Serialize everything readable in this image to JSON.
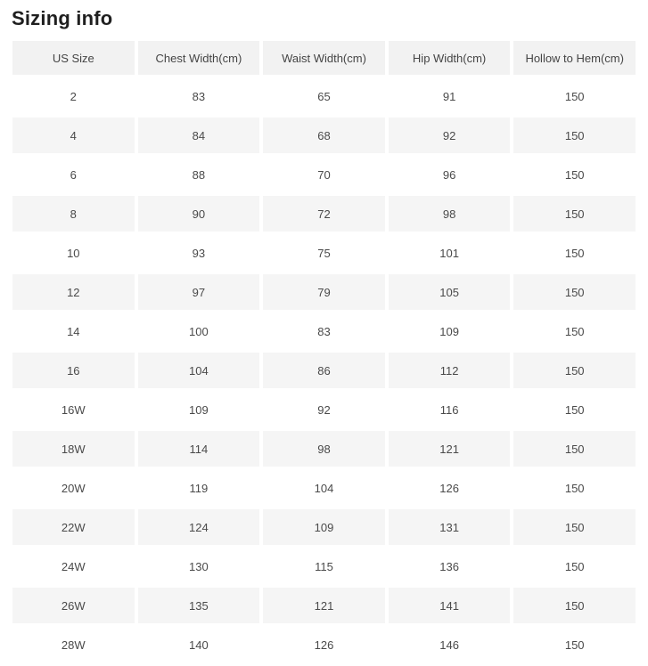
{
  "page": {
    "title": "Sizing info"
  },
  "colors": {
    "header_background": "#f2f2f2",
    "stripe_background": "#f5f5f5",
    "text": "#4a4a4a",
    "title_text": "#1f1f1f"
  },
  "table": {
    "columns": [
      "US Size",
      "Chest Width(cm)",
      "Waist Width(cm)",
      "Hip Width(cm)",
      "Hollow to Hem(cm)"
    ],
    "rows": [
      [
        "2",
        "83",
        "65",
        "91",
        "150"
      ],
      [
        "4",
        "84",
        "68",
        "92",
        "150"
      ],
      [
        "6",
        "88",
        "70",
        "96",
        "150"
      ],
      [
        "8",
        "90",
        "72",
        "98",
        "150"
      ],
      [
        "10",
        "93",
        "75",
        "101",
        "150"
      ],
      [
        "12",
        "97",
        "79",
        "105",
        "150"
      ],
      [
        "14",
        "100",
        "83",
        "109",
        "150"
      ],
      [
        "16",
        "104",
        "86",
        "112",
        "150"
      ],
      [
        "16W",
        "109",
        "92",
        "116",
        "150"
      ],
      [
        "18W",
        "114",
        "98",
        "121",
        "150"
      ],
      [
        "20W",
        "119",
        "104",
        "126",
        "150"
      ],
      [
        "22W",
        "124",
        "109",
        "131",
        "150"
      ],
      [
        "24W",
        "130",
        "115",
        "136",
        "150"
      ],
      [
        "26W",
        "135",
        "121",
        "141",
        "150"
      ],
      [
        "28W",
        "140",
        "126",
        "146",
        "150"
      ]
    ]
  }
}
